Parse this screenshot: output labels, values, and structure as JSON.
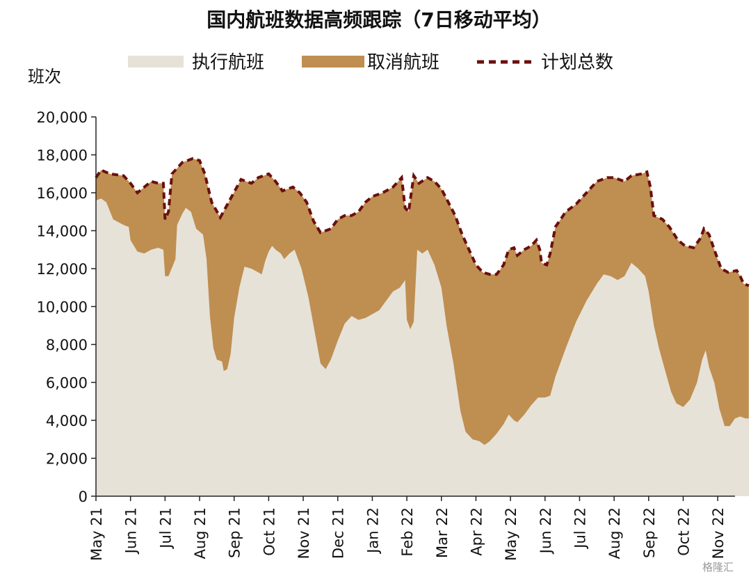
{
  "chart_data": {
    "type": "area",
    "title": "国内航班数据高频跟踪（7日移动平均）",
    "ylabel": "班次",
    "ylim": [
      0,
      20000
    ],
    "yticks": [
      0,
      2000,
      4000,
      6000,
      8000,
      10000,
      12000,
      14000,
      16000,
      18000,
      20000
    ],
    "ytick_labels": [
      "0",
      "2,000",
      "4,000",
      "6,000",
      "8,000",
      "10,000",
      "12,000",
      "14,000",
      "16,000",
      "18,000",
      "20,000"
    ],
    "xlim": [
      0,
      18.5
    ],
    "xtick_labels": [
      "May 21",
      "Jun 21",
      "Jul 21",
      "Aug 21",
      "Sep 21",
      "Oct 21",
      "Nov 21",
      "Dec 21",
      "Jan 22",
      "Feb 22",
      "Mar 22",
      "Apr 22",
      "May 22",
      "Jun 22",
      "Jul 22",
      "Aug 22",
      "Sep 22",
      "Oct 22",
      "Nov 22"
    ],
    "x_unit": "months since May 2021",
    "legend": {
      "position": "top",
      "items": [
        {
          "key": "executed",
          "label": "执行航班",
          "color": "#e6e2d8",
          "style": "area"
        },
        {
          "key": "cancelled",
          "label": "取消航班",
          "color": "#bf8e51",
          "style": "area"
        },
        {
          "key": "planned",
          "label": "计划总数",
          "color": "#6b0f0f",
          "style": "dashed-line"
        }
      ]
    },
    "series": [
      {
        "name": "计划总数",
        "points": [
          [
            0,
            16800
          ],
          [
            0.15,
            17200
          ],
          [
            0.4,
            17000
          ],
          [
            0.8,
            16900
          ],
          [
            1.0,
            16500
          ],
          [
            1.2,
            16000
          ],
          [
            1.4,
            16300
          ],
          [
            1.6,
            16600
          ],
          [
            1.8,
            16500
          ],
          [
            1.95,
            16500
          ],
          [
            2.0,
            14600
          ],
          [
            2.1,
            15000
          ],
          [
            2.2,
            17000
          ],
          [
            2.5,
            17600
          ],
          [
            2.8,
            17800
          ],
          [
            3.0,
            17700
          ],
          [
            3.15,
            17000
          ],
          [
            3.35,
            15500
          ],
          [
            3.6,
            14700
          ],
          [
            3.9,
            15700
          ],
          [
            4.2,
            16700
          ],
          [
            4.5,
            16500
          ],
          [
            4.7,
            16800
          ],
          [
            5.0,
            17000
          ],
          [
            5.2,
            16600
          ],
          [
            5.4,
            16100
          ],
          [
            5.7,
            16300
          ],
          [
            5.9,
            16000
          ],
          [
            6.1,
            15500
          ],
          [
            6.3,
            14500
          ],
          [
            6.5,
            13900
          ],
          [
            6.8,
            14100
          ],
          [
            7.0,
            14600
          ],
          [
            7.2,
            14800
          ],
          [
            7.4,
            14800
          ],
          [
            7.6,
            15000
          ],
          [
            7.8,
            15500
          ],
          [
            8.0,
            15800
          ],
          [
            8.3,
            16000
          ],
          [
            8.6,
            16300
          ],
          [
            8.85,
            16800
          ],
          [
            8.95,
            15200
          ],
          [
            9.05,
            15000
          ],
          [
            9.2,
            16900
          ],
          [
            9.35,
            16500
          ],
          [
            9.6,
            16800
          ],
          [
            9.8,
            16600
          ],
          [
            10.0,
            16200
          ],
          [
            10.2,
            15500
          ],
          [
            10.4,
            14800
          ],
          [
            10.6,
            13800
          ],
          [
            10.8,
            13000
          ],
          [
            11.0,
            12200
          ],
          [
            11.2,
            11800
          ],
          [
            11.4,
            11700
          ],
          [
            11.6,
            11700
          ],
          [
            11.8,
            12200
          ],
          [
            11.95,
            13000
          ],
          [
            12.1,
            13100
          ],
          [
            12.2,
            12700
          ],
          [
            12.4,
            13000
          ],
          [
            12.6,
            13200
          ],
          [
            12.75,
            13500
          ],
          [
            12.85,
            13000
          ],
          [
            12.9,
            12300
          ],
          [
            13.05,
            12200
          ],
          [
            13.15,
            12800
          ],
          [
            13.3,
            14200
          ],
          [
            13.6,
            15000
          ],
          [
            13.9,
            15400
          ],
          [
            14.2,
            16000
          ],
          [
            14.5,
            16600
          ],
          [
            14.8,
            16800
          ],
          [
            15.0,
            16800
          ],
          [
            15.3,
            16600
          ],
          [
            15.5,
            16900
          ],
          [
            15.8,
            17000
          ],
          [
            15.95,
            17100
          ],
          [
            16.05,
            16300
          ],
          [
            16.15,
            14800
          ],
          [
            16.4,
            14600
          ],
          [
            16.6,
            14200
          ],
          [
            16.85,
            13500
          ],
          [
            17.05,
            13200
          ],
          [
            17.3,
            13100
          ],
          [
            17.5,
            13600
          ],
          [
            17.6,
            14100
          ],
          [
            17.75,
            13800
          ],
          [
            17.9,
            13000
          ],
          [
            18.1,
            12000
          ],
          [
            18.3,
            11800
          ],
          [
            18.55,
            11900
          ],
          [
            18.65,
            11600
          ],
          [
            18.75,
            11200
          ],
          [
            18.9,
            11100
          ]
        ]
      },
      {
        "name": "执行航班",
        "points": [
          [
            0,
            15600
          ],
          [
            0.15,
            15700
          ],
          [
            0.3,
            15500
          ],
          [
            0.5,
            14600
          ],
          [
            0.8,
            14300
          ],
          [
            0.95,
            14200
          ],
          [
            1.0,
            13500
          ],
          [
            1.2,
            12900
          ],
          [
            1.4,
            12800
          ],
          [
            1.6,
            13000
          ],
          [
            1.8,
            13100
          ],
          [
            1.95,
            13000
          ],
          [
            2.0,
            11600
          ],
          [
            2.1,
            11600
          ],
          [
            2.3,
            12500
          ],
          [
            2.35,
            14300
          ],
          [
            2.5,
            14900
          ],
          [
            2.6,
            15200
          ],
          [
            2.75,
            15000
          ],
          [
            2.9,
            14100
          ],
          [
            3.1,
            13800
          ],
          [
            3.2,
            12500
          ],
          [
            3.3,
            9500
          ],
          [
            3.4,
            7800
          ],
          [
            3.5,
            7200
          ],
          [
            3.65,
            7100
          ],
          [
            3.7,
            6600
          ],
          [
            3.8,
            6700
          ],
          [
            3.9,
            7500
          ],
          [
            4.0,
            9400
          ],
          [
            4.15,
            11000
          ],
          [
            4.3,
            12100
          ],
          [
            4.5,
            12000
          ],
          [
            4.7,
            11800
          ],
          [
            4.8,
            11700
          ],
          [
            4.9,
            12400
          ],
          [
            5.0,
            12900
          ],
          [
            5.1,
            13200
          ],
          [
            5.2,
            13000
          ],
          [
            5.35,
            12800
          ],
          [
            5.45,
            12500
          ],
          [
            5.6,
            12800
          ],
          [
            5.75,
            13000
          ],
          [
            5.95,
            12000
          ],
          [
            6.15,
            10500
          ],
          [
            6.35,
            8500
          ],
          [
            6.5,
            7000
          ],
          [
            6.65,
            6700
          ],
          [
            6.8,
            7200
          ],
          [
            7.0,
            8200
          ],
          [
            7.2,
            9100
          ],
          [
            7.4,
            9500
          ],
          [
            7.6,
            9300
          ],
          [
            7.8,
            9400
          ],
          [
            8.0,
            9600
          ],
          [
            8.2,
            9800
          ],
          [
            8.4,
            10300
          ],
          [
            8.6,
            10800
          ],
          [
            8.8,
            11000
          ],
          [
            8.95,
            11400
          ],
          [
            9.0,
            9300
          ],
          [
            9.1,
            8800
          ],
          [
            9.2,
            9200
          ],
          [
            9.3,
            13000
          ],
          [
            9.45,
            12800
          ],
          [
            9.6,
            13000
          ],
          [
            9.8,
            12200
          ],
          [
            10.0,
            11000
          ],
          [
            10.15,
            9000
          ],
          [
            10.35,
            7000
          ],
          [
            10.55,
            4500
          ],
          [
            10.7,
            3400
          ],
          [
            10.9,
            3000
          ],
          [
            11.1,
            2900
          ],
          [
            11.25,
            2700
          ],
          [
            11.4,
            2900
          ],
          [
            11.6,
            3300
          ],
          [
            11.8,
            3800
          ],
          [
            11.95,
            4300
          ],
          [
            12.1,
            4000
          ],
          [
            12.2,
            3900
          ],
          [
            12.4,
            4300
          ],
          [
            12.6,
            4800
          ],
          [
            12.8,
            5200
          ],
          [
            13.0,
            5200
          ],
          [
            13.15,
            5300
          ],
          [
            13.3,
            6300
          ],
          [
            13.6,
            7800
          ],
          [
            13.9,
            9200
          ],
          [
            14.2,
            10300
          ],
          [
            14.5,
            11200
          ],
          [
            14.7,
            11700
          ],
          [
            14.9,
            11600
          ],
          [
            15.1,
            11400
          ],
          [
            15.3,
            11600
          ],
          [
            15.5,
            12300
          ],
          [
            15.7,
            12000
          ],
          [
            15.9,
            11600
          ],
          [
            16.0,
            10800
          ],
          [
            16.15,
            9000
          ],
          [
            16.3,
            7800
          ],
          [
            16.45,
            6800
          ],
          [
            16.65,
            5500
          ],
          [
            16.8,
            4900
          ],
          [
            17.0,
            4700
          ],
          [
            17.2,
            5100
          ],
          [
            17.4,
            6000
          ],
          [
            17.55,
            7200
          ],
          [
            17.65,
            7700
          ],
          [
            17.75,
            6800
          ],
          [
            17.9,
            6000
          ],
          [
            18.05,
            4600
          ],
          [
            18.2,
            3700
          ],
          [
            18.35,
            3700
          ],
          [
            18.5,
            4100
          ],
          [
            18.65,
            4200
          ],
          [
            18.8,
            4100
          ],
          [
            18.9,
            4100
          ]
        ]
      }
    ],
    "watermark": "格隆汇"
  }
}
